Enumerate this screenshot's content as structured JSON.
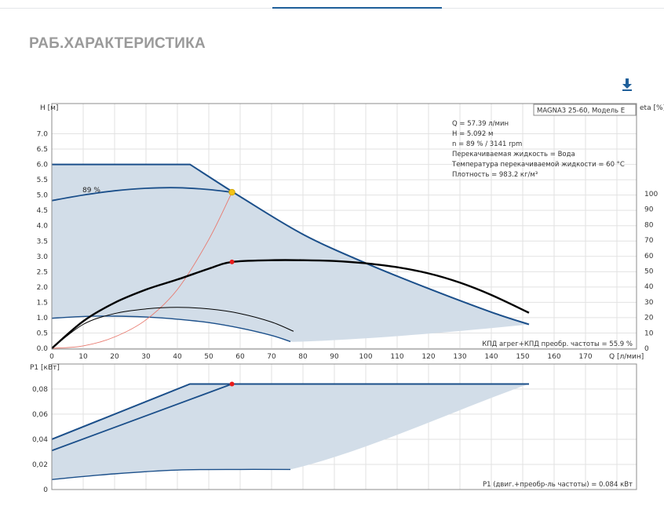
{
  "page": {
    "title": "РАБ.ХАРАКТЕРИСТИКА",
    "download_icon": "download-icon"
  },
  "colors": {
    "band_fill": "#d2dde8",
    "band_edge": "#1b4f8a",
    "efficiency": "#000000",
    "system_curve": "#e8796e",
    "operating_point": "#e81c1c",
    "duty_point": "#f2c318"
  },
  "chart_data": [
    {
      "type": "line",
      "xlabel": "Q [л/мин]",
      "ylabel": "H [м]",
      "y2label": "eta [%]",
      "xlim": [
        0,
        180
      ],
      "ylim": [
        0,
        7.0
      ],
      "y2lim": [
        0,
        100
      ],
      "x_ticks": [
        "0",
        "10",
        "20",
        "30",
        "40",
        "50",
        "60",
        "70",
        "80",
        "90",
        "100",
        "110",
        "120",
        "130",
        "140",
        "150",
        "160",
        "170"
      ],
      "y_ticks": [
        "0.0",
        "0.5",
        "1.0",
        "1.5",
        "2.0",
        "2.5",
        "3.0",
        "3.5",
        "4.0",
        "4.5",
        "5.0",
        "5.5",
        "6.0",
        "6.5",
        "7.0"
      ],
      "y2_ticks": [
        "0",
        "10",
        "20",
        "30",
        "40",
        "50",
        "60",
        "70",
        "80",
        "90",
        "100"
      ],
      "grid": true,
      "legend_box": "MAGNA3 25-60, Модель E",
      "info_lines": [
        "Q = 57.39 л/мин",
        "H = 5.092 м",
        "n = 89 % / 3141 rpm",
        "Перекачиваемая жидкость = Вода",
        "Температура перекачиваемой жидкости = 60 °C",
        "Плотность = 983.2 кг/м³"
      ],
      "curve_label": "89 %",
      "footer_note": "КПД агрег+КПД преобр. частоты = 55.9 %",
      "operating_point": {
        "x": 57.39,
        "h": 5.092,
        "eta": 55.9
      },
      "series": [
        {
          "role": "max-curve",
          "x": [
            0,
            44,
            60,
            80,
            100,
            120,
            140,
            152
          ],
          "y": [
            6.0,
            6.0,
            4.95,
            3.72,
            2.78,
            1.95,
            1.18,
            0.78
          ]
        },
        {
          "role": "min-curve",
          "x": [
            0,
            10,
            20,
            30,
            40,
            50,
            60,
            70,
            76
          ],
          "y": [
            0.98,
            1.04,
            1.05,
            1.02,
            0.95,
            0.84,
            0.66,
            0.42,
            0.22
          ]
        },
        {
          "role": "duty-89",
          "x": [
            0,
            10,
            20,
            30,
            40,
            50,
            57.39
          ],
          "y": [
            4.82,
            5.0,
            5.14,
            5.22,
            5.24,
            5.18,
            5.092
          ]
        },
        {
          "role": "efficiency",
          "x": [
            0,
            10,
            20,
            30,
            40,
            50,
            57.39,
            70,
            80,
            90,
            100,
            110,
            120,
            130,
            140,
            152
          ],
          "y": [
            0,
            17.5,
            29.5,
            38,
            44.5,
            51.5,
            55.9,
            57,
            57,
            56.5,
            55,
            52.5,
            48.5,
            42.5,
            34.5,
            23
          ]
        },
        {
          "role": "efficiency-min",
          "x": [
            0,
            10,
            20,
            30,
            40,
            50,
            60,
            70,
            77
          ],
          "y": [
            0,
            15.5,
            22.5,
            25.5,
            26.5,
            25.5,
            22.5,
            17,
            11
          ]
        },
        {
          "role": "system-curve",
          "x": [
            0,
            10,
            20,
            30,
            40,
            50,
            57.39
          ],
          "y": [
            0,
            0.08,
            0.37,
            0.93,
            1.92,
            3.55,
            5.092
          ]
        }
      ]
    },
    {
      "type": "line",
      "xlabel": "",
      "ylabel": "P1 [кВт]",
      "xlim": [
        0,
        180
      ],
      "ylim": [
        0,
        0.095
      ],
      "y_ticks": [
        "0",
        "0,02",
        "0,04",
        "0,06",
        "0,08"
      ],
      "grid": true,
      "footer_note": "P1 (двиг.+преобр-ль частоты) = 0.084 кВт",
      "operating_point": {
        "x": 57.39,
        "p1": 0.084
      },
      "series": [
        {
          "role": "max-power",
          "x": [
            0,
            44,
            152
          ],
          "y": [
            0.04,
            0.084,
            0.084
          ]
        },
        {
          "role": "duty-power-89",
          "x": [
            0,
            57.39
          ],
          "y": [
            0.031,
            0.084
          ]
        },
        {
          "role": "min-power",
          "x": [
            0,
            20,
            40,
            60,
            76
          ],
          "y": [
            0.008,
            0.0125,
            0.0155,
            0.016,
            0.016
          ]
        }
      ]
    }
  ]
}
